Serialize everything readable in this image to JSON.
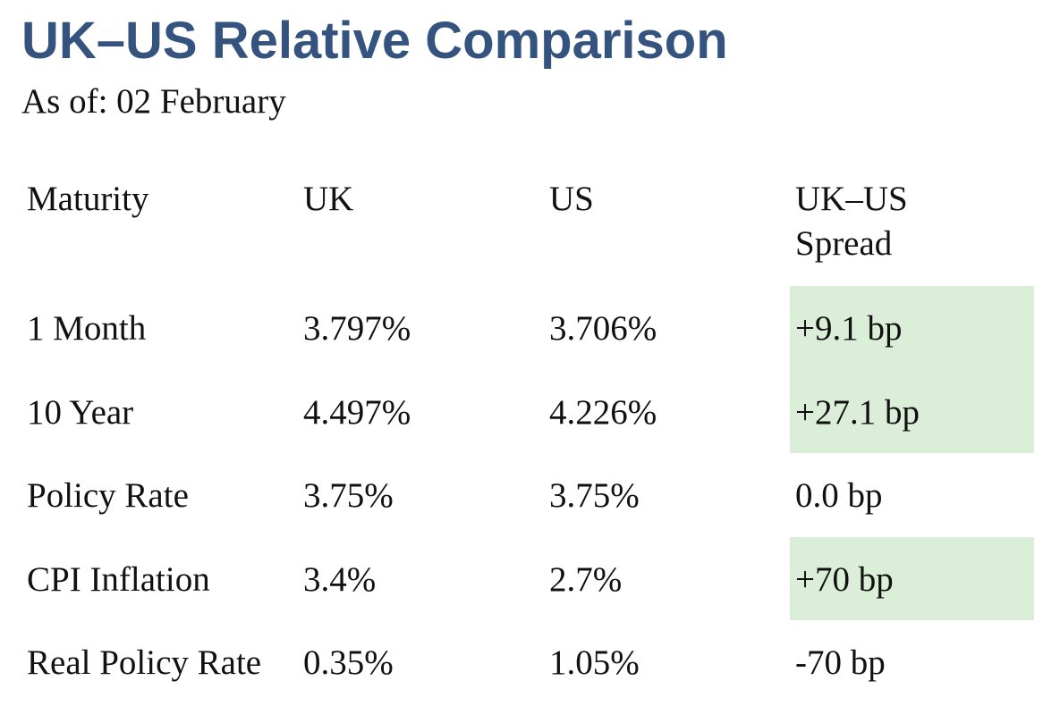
{
  "header": {
    "title": "UK–US Relative Comparison",
    "as_of": "As of: 02 February"
  },
  "table": {
    "columns": [
      "Maturity",
      "UK",
      "US",
      "UK–US",
      "Spread"
    ],
    "rows": [
      {
        "maturity": "1 Month",
        "uk": "3.797%",
        "us": "3.706%",
        "spread": "+9.1 bp",
        "highlighted": true
      },
      {
        "maturity": "10 Year",
        "uk": "4.497%",
        "us": "4.226%",
        "spread": "+27.1 bp",
        "highlighted": true
      },
      {
        "maturity": "Policy Rate",
        "uk": "3.75%",
        "us": "3.75%",
        "spread": "0.0 bp",
        "highlighted": false
      },
      {
        "maturity": "CPI Inflation",
        "uk": "3.4%",
        "us": "2.7%",
        "spread": "+70 bp",
        "highlighted": true
      },
      {
        "maturity": "Real Policy Rate",
        "uk": "0.35%",
        "us": "1.05%",
        "spread": "-70 bp",
        "highlighted": false
      }
    ]
  },
  "colors": {
    "title": "#34537e",
    "highlight": "#dbefd8",
    "text": "#111111"
  }
}
